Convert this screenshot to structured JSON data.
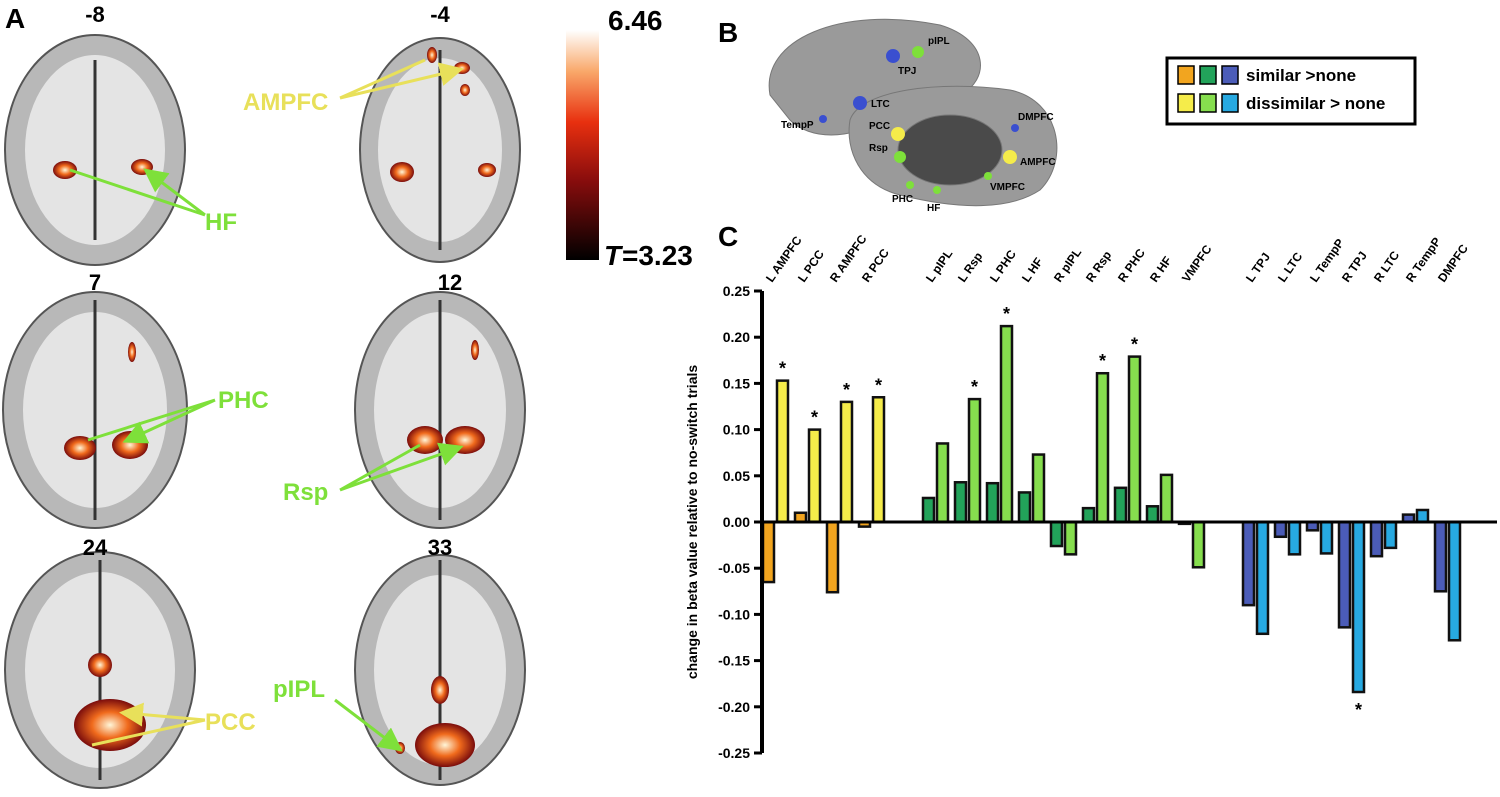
{
  "panel_a": {
    "label": "A",
    "slices": [
      "-8",
      "-4",
      "7",
      "12",
      "24",
      "33"
    ],
    "regions": [
      "AMPFC",
      "HF",
      "PHC",
      "Rsp",
      "PCC",
      "pIPL"
    ],
    "colorbar": {
      "max": "6.46",
      "stat": "T",
      "min": "=3.23"
    }
  },
  "panel_b": {
    "label": "B",
    "regions": [
      "pIPL",
      "TPJ",
      "LTC",
      "TempP",
      "PCC",
      "Rsp",
      "DMPFC",
      "AMPFC",
      "VMPFC",
      "PHC",
      "HF"
    ]
  },
  "chart_data": {
    "type": "bar",
    "panel_label": "C",
    "y_label": "change in beta value relative to no-switch trials",
    "categories": [
      "L AMPFC",
      "L PCC",
      "R AMPFC",
      "R PCC",
      "L pIPL",
      "L Rsp",
      "L PHC",
      "L HF",
      "R pIPL",
      "R Rsp",
      "R PHC",
      "R HF",
      "VMPFC",
      "L TPJ",
      "L LTC",
      "L TempP",
      "R TPJ",
      "R LTC",
      "R TempP",
      "DMPFC"
    ],
    "series": [
      {
        "name": "similar >none",
        "colors": [
          "#f2a51f",
          "#f2a51f",
          "#f2a51f",
          "#f2a51f",
          "#22a35a",
          "#22a35a",
          "#22a35a",
          "#22a35a",
          "#22a35a",
          "#22a35a",
          "#22a35a",
          "#22a35a",
          "#22a35a",
          "#4b5cb8",
          "#4b5cb8",
          "#4b5cb8",
          "#4b5cb8",
          "#4b5cb8",
          "#4b5cb8",
          "#4b5cb8"
        ],
        "values": [
          -0.065,
          0.01,
          -0.076,
          -0.005,
          0.026,
          0.043,
          0.042,
          0.032,
          -0.026,
          0.015,
          0.037,
          0.017,
          -0.002,
          -0.09,
          -0.016,
          -0.009,
          -0.114,
          -0.037,
          0.008,
          -0.075
        ],
        "significance": [
          null,
          null,
          null,
          null,
          null,
          null,
          null,
          null,
          null,
          null,
          null,
          null,
          null,
          null,
          null,
          null,
          null,
          null,
          null,
          null
        ]
      },
      {
        "name": "dissimilar > none",
        "colors": [
          "#f5ec4a",
          "#f5ec4a",
          "#f5ec4a",
          "#f5ec4a",
          "#86de4e",
          "#86de4e",
          "#86de4e",
          "#86de4e",
          "#86de4e",
          "#86de4e",
          "#86de4e",
          "#86de4e",
          "#86de4e",
          "#27a9e1",
          "#27a9e1",
          "#27a9e1",
          "#27a9e1",
          "#27a9e1",
          "#27a9e1",
          "#27a9e1"
        ],
        "values": [
          0.153,
          0.1,
          0.13,
          0.135,
          0.085,
          0.133,
          0.212,
          0.073,
          -0.035,
          0.161,
          0.179,
          0.051,
          -0.049,
          -0.121,
          -0.035,
          -0.034,
          -0.184,
          -0.028,
          0.013,
          -0.128
        ],
        "significance": [
          "*",
          "*",
          "*",
          "*",
          null,
          "*",
          "*",
          null,
          null,
          "*",
          "*",
          null,
          null,
          null,
          null,
          null,
          "*",
          null,
          null,
          null
        ]
      }
    ],
    "ylim": [
      -0.25,
      0.25
    ],
    "yticks": [
      {
        "value": 0.25,
        "label": "0.25"
      },
      {
        "value": 0.2,
        "label": "0.20"
      },
      {
        "value": 0.15,
        "label": "0.15"
      },
      {
        "value": 0.1,
        "label": "0.10"
      },
      {
        "value": 0.05,
        "label": "0.05"
      },
      {
        "value": 0,
        "label": "0.00"
      },
      {
        "value": -0.05,
        "label": "-0.05"
      },
      {
        "value": -0.1,
        "label": "-0.10"
      },
      {
        "value": -0.15,
        "label": "-0.15"
      },
      {
        "value": -0.2,
        "label": "-0.20"
      },
      {
        "value": -0.25,
        "label": "-0.25"
      }
    ]
  }
}
